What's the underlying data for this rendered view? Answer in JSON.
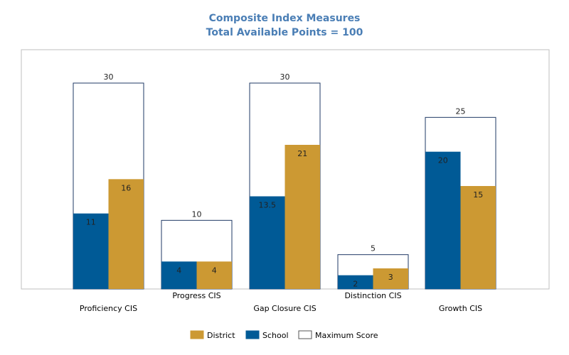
{
  "chart_data": {
    "type": "bar",
    "title": "Composite Index Measures",
    "subtitle": "Total Available Points = 100",
    "categories": [
      "Proficiency CIS",
      "Progress CIS",
      "Gap Closure CIS",
      "Distinction CIS",
      "Growth CIS"
    ],
    "series": [
      {
        "name": "Maximum Score",
        "values": [
          30,
          10,
          30,
          5,
          25
        ],
        "color": "#ffffff",
        "stroke": "#1f3864"
      },
      {
        "name": "School",
        "values": [
          11,
          4,
          13.5,
          2,
          20
        ],
        "color": "#005a96"
      },
      {
        "name": "District",
        "values": [
          16,
          4,
          21,
          3,
          15
        ],
        "color": "#cc9933"
      }
    ],
    "value_labels": {
      "max": [
        "30",
        "10",
        "30",
        "5",
        "25"
      ],
      "school": [
        "11",
        "4",
        "13.5",
        "2",
        "20"
      ],
      "district": [
        "16",
        "4",
        "21",
        "3",
        "15"
      ]
    },
    "legend_order": [
      "District",
      "School",
      "Maximum Score"
    ],
    "legend_position": "bottom",
    "ylim": [
      0,
      35
    ],
    "grid": false,
    "xlabel": "",
    "ylabel": ""
  }
}
